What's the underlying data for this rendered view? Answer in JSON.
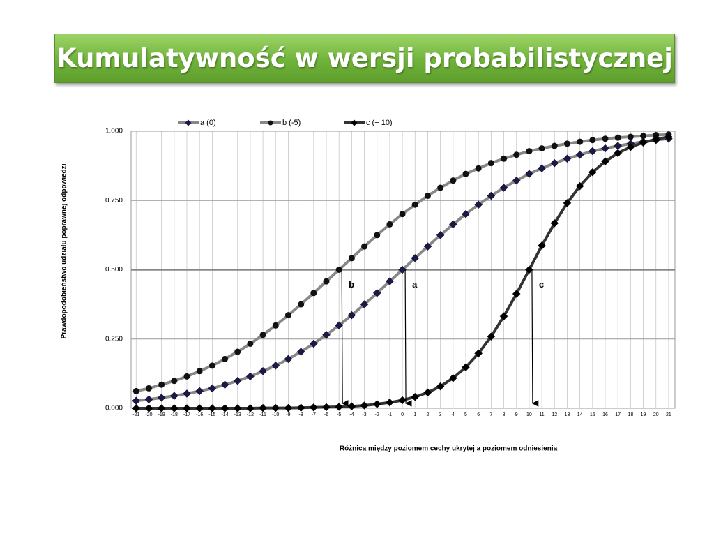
{
  "chart_data": {
    "type": "line",
    "title": "Kumulatywność w wersji probabilistycznej",
    "xlabel": "Różnica między poziomem cechy ukrytej a poziomem odniesienia",
    "ylabel": "Prawdopodobieństwo udziału poprawnej odpowiedzi",
    "x": [
      -21,
      -20,
      -19,
      -18,
      -17,
      -16,
      -15,
      -14,
      -13,
      -12,
      -11,
      -10,
      -9,
      -8,
      -7,
      -6,
      -5,
      -4,
      -3,
      -2,
      -1,
      0,
      1,
      2,
      3,
      4,
      5,
      6,
      7,
      8,
      9,
      10,
      11,
      12,
      13,
      14,
      15,
      16,
      17,
      18,
      19,
      20,
      21
    ],
    "xlim": [
      -21.4,
      21.5
    ],
    "ylim": [
      0,
      1
    ],
    "yticks": [
      {
        "value": 0,
        "label": "0.000"
      },
      {
        "value": 0.25,
        "label": "0.250"
      },
      {
        "value": 0.5,
        "label": "0.500"
      },
      {
        "value": 0.75,
        "label": "0.750"
      },
      {
        "value": 1,
        "label": "1.000"
      }
    ],
    "grid": true,
    "reference_line": 0.5,
    "legend": "top",
    "series": [
      {
        "name": "a (0)",
        "color": "#888888",
        "marker": "diamond",
        "marker_color": "#1a1a4a",
        "values": [
          0.027,
          0.032,
          0.038,
          0.045,
          0.053,
          0.062,
          0.072,
          0.085,
          0.099,
          0.115,
          0.134,
          0.154,
          0.178,
          0.204,
          0.233,
          0.265,
          0.299,
          0.336,
          0.375,
          0.416,
          0.458,
          0.5,
          0.542,
          0.584,
          0.625,
          0.664,
          0.701,
          0.735,
          0.767,
          0.796,
          0.822,
          0.846,
          0.866,
          0.885,
          0.901,
          0.915,
          0.928,
          0.938,
          0.947,
          0.955,
          0.962,
          0.968,
          0.973
        ]
      },
      {
        "name": "b (-5)",
        "color": "#888888",
        "marker": "circle",
        "marker_color": "#111111",
        "values": [
          0.062,
          0.072,
          0.085,
          0.099,
          0.115,
          0.134,
          0.154,
          0.178,
          0.204,
          0.233,
          0.265,
          0.299,
          0.336,
          0.375,
          0.416,
          0.458,
          0.5,
          0.542,
          0.584,
          0.625,
          0.664,
          0.701,
          0.735,
          0.767,
          0.796,
          0.822,
          0.846,
          0.866,
          0.885,
          0.901,
          0.915,
          0.928,
          0.938,
          0.947,
          0.955,
          0.962,
          0.968,
          0.973,
          0.977,
          0.98,
          0.983,
          0.986,
          0.988
        ]
      },
      {
        "name": "c (+ 10)",
        "color": "#333333",
        "marker": "diamond",
        "marker_color": "#000000",
        "values": [
          0,
          0,
          0,
          0,
          0,
          0,
          0,
          0,
          0,
          0,
          0.001,
          0.001,
          0.001,
          0.002,
          0.003,
          0.004,
          0.005,
          0.007,
          0.01,
          0.015,
          0.021,
          0.029,
          0.041,
          0.057,
          0.079,
          0.109,
          0.148,
          0.198,
          0.259,
          0.332,
          0.413,
          0.5,
          0.587,
          0.668,
          0.741,
          0.802,
          0.852,
          0.891,
          0.921,
          0.943,
          0.959,
          0.971,
          0.979
        ]
      }
    ],
    "annotations": [
      {
        "text": "b",
        "x": -5,
        "y": 0.5
      },
      {
        "text": "a",
        "x": 0,
        "y": 0.5
      },
      {
        "text": "c",
        "x": 10,
        "y": 0.5
      }
    ]
  }
}
